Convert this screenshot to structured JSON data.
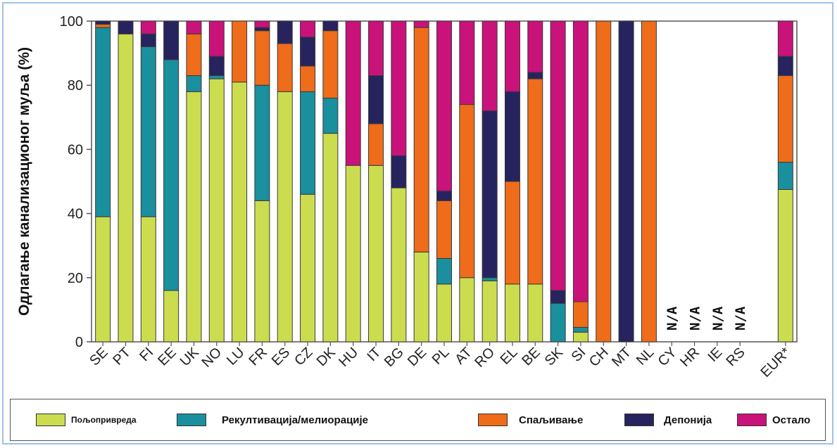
{
  "chart_data": {
    "type": "bar",
    "stacked": true,
    "title": "",
    "xlabel": "",
    "ylabel": "Одлагање канализационог муља  (%)",
    "ylim": [
      0,
      100
    ],
    "yticks": [
      0,
      20,
      40,
      60,
      80,
      100
    ],
    "grid": false,
    "legend_position": "bottom",
    "categories": [
      "SE",
      "PT",
      "FI",
      "EE",
      "UK",
      "NO",
      "LU",
      "FR",
      "ES",
      "CZ",
      "DK",
      "HU",
      "IT",
      "BG",
      "DE",
      "PL",
      "AT",
      "RO",
      "EL",
      "BE",
      "SK",
      "SI",
      "CH",
      "MT",
      "NL",
      "CY",
      "HR",
      "IE",
      "RS",
      "",
      "EUR*"
    ],
    "series": [
      {
        "name": "Пољопривреда",
        "color": "#ccdc4f",
        "values": [
          39,
          96,
          39,
          16,
          78,
          82,
          81,
          44,
          78,
          46,
          65,
          55,
          55,
          48,
          28,
          18,
          20,
          19,
          18,
          18,
          0,
          3,
          0,
          0,
          0,
          0,
          0,
          0,
          0,
          0,
          47.5
        ]
      },
      {
        "name": "Рекултивација/мелиорације",
        "color": "#1a8f9e",
        "values": [
          59,
          0,
          53,
          72,
          5,
          1,
          0,
          36,
          0,
          32,
          11,
          0,
          0,
          0,
          0,
          8,
          0,
          1,
          0,
          0,
          12,
          1.5,
          0,
          0,
          0,
          0,
          0,
          0,
          0,
          0,
          8.5
        ]
      },
      {
        "name": "Спаљивање",
        "color": "#ee6c1a",
        "values": [
          1,
          0,
          0,
          0,
          13,
          0,
          19,
          17,
          15,
          8,
          21,
          0,
          13,
          0,
          70,
          18,
          54,
          0,
          32,
          64,
          0,
          8,
          100,
          0,
          100,
          0,
          0,
          0,
          0,
          0,
          27
        ]
      },
      {
        "name": "Депонија",
        "color": "#27235e",
        "values": [
          1,
          4,
          4,
          12,
          0,
          6,
          0,
          1,
          7,
          9,
          3,
          0,
          15,
          10,
          0,
          3,
          0,
          52,
          28,
          2,
          4,
          0,
          0,
          100,
          0,
          0,
          0,
          0,
          0,
          0,
          6
        ]
      },
      {
        "name": "Остало",
        "color": "#c9127a",
        "values": [
          0,
          0,
          4,
          0,
          4,
          11,
          0,
          2,
          0,
          5,
          0,
          45,
          17,
          42,
          2,
          53,
          26,
          28,
          22,
          16,
          84,
          87.5,
          0,
          0,
          0,
          0,
          0,
          0,
          0,
          0,
          11
        ]
      }
    ],
    "annotations": [
      {
        "category": "CY",
        "text": "N/A"
      },
      {
        "category": "HR",
        "text": "N/A"
      },
      {
        "category": "IE",
        "text": "N/A"
      },
      {
        "category": "RS",
        "text": "N/A"
      }
    ]
  },
  "legend": [
    {
      "label": "Пољопривреда",
      "color": "#ccdc4f"
    },
    {
      "label": "Рекултивација/мелиорације",
      "color": "#1a8f9e"
    },
    {
      "label": "Спаљивање",
      "color": "#ee6c1a"
    },
    {
      "label": "Депонија",
      "color": "#27235e"
    },
    {
      "label": "Остало",
      "color": "#c9127a"
    }
  ]
}
